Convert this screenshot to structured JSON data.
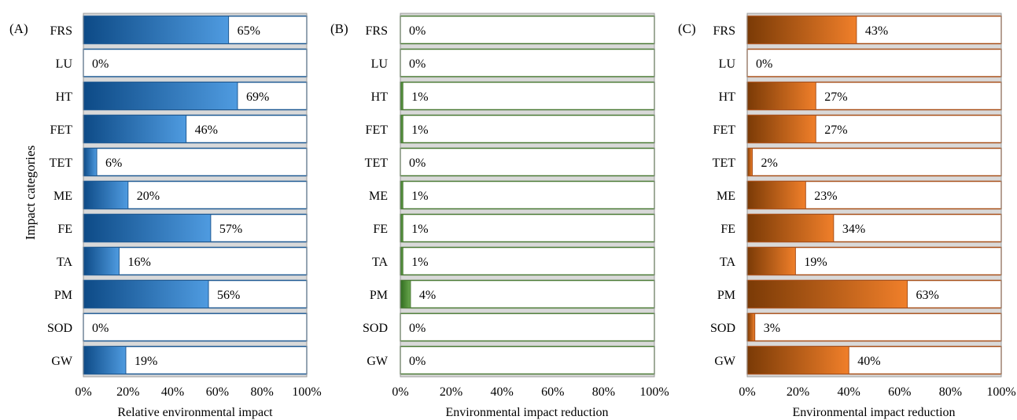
{
  "chart_data": [
    {
      "type": "bar",
      "orientation": "horizontal",
      "panel_label": "(A)",
      "categories": [
        "FRS",
        "LU",
        "HT",
        "FET",
        "TET",
        "ME",
        "FE",
        "TA",
        "PM",
        "SOD",
        "GW"
      ],
      "values": [
        65,
        0,
        69,
        46,
        6,
        20,
        57,
        16,
        56,
        0,
        19
      ],
      "value_labels": [
        "65%",
        "0%",
        "69%",
        "46%",
        "6%",
        "20%",
        "57%",
        "16%",
        "56%",
        "0%",
        "19%"
      ],
      "xlabel": "Relative environmental impact",
      "ylabel": "Impact categories",
      "xlim": [
        0,
        100
      ],
      "xticks": [
        "0%",
        "20%",
        "40%",
        "60%",
        "80%",
        "100%"
      ],
      "colors": {
        "dark": "#0d4a86",
        "light": "#4f9be0",
        "border": "#1f5a93"
      }
    },
    {
      "type": "bar",
      "orientation": "horizontal",
      "panel_label": "(B)",
      "categories": [
        "FRS",
        "LU",
        "HT",
        "FET",
        "TET",
        "ME",
        "FE",
        "TA",
        "PM",
        "SOD",
        "GW"
      ],
      "values": [
        0,
        0,
        1,
        1,
        0,
        1,
        1,
        1,
        4,
        0,
        0
      ],
      "value_labels": [
        "0%",
        "0%",
        "1%",
        "1%",
        "0%",
        "1%",
        "1%",
        "1%",
        "4%",
        "0%",
        "0%"
      ],
      "xlabel": "Environmental impact reduction",
      "ylabel": "",
      "xlim": [
        0,
        100
      ],
      "xticks": [
        "0%",
        "20%",
        "40%",
        "60%",
        "80%",
        "100%"
      ],
      "colors": {
        "dark": "#2f6b1e",
        "light": "#6aa84f",
        "border": "#4a7a35"
      }
    },
    {
      "type": "bar",
      "orientation": "horizontal",
      "panel_label": "(C)",
      "categories": [
        "FRS",
        "LU",
        "HT",
        "FET",
        "TET",
        "ME",
        "FE",
        "TA",
        "PM",
        "SOD",
        "GW"
      ],
      "values": [
        43,
        0,
        27,
        27,
        2,
        23,
        34,
        19,
        63,
        3,
        40
      ],
      "value_labels": [
        "43%",
        "0%",
        "27%",
        "27%",
        "2%",
        "23%",
        "34%",
        "19%",
        "63%",
        "3%",
        "40%"
      ],
      "xlabel": "Environmental impact reduction",
      "ylabel": "",
      "xlim": [
        0,
        100
      ],
      "xticks": [
        "0%",
        "20%",
        "40%",
        "60%",
        "80%",
        "100%"
      ],
      "colors": {
        "dark": "#7a3a06",
        "light": "#f07f2a",
        "border": "#a8501a"
      }
    }
  ],
  "colors": {
    "row_band": "#d9d9d9",
    "track_fill": "#ffffff"
  }
}
